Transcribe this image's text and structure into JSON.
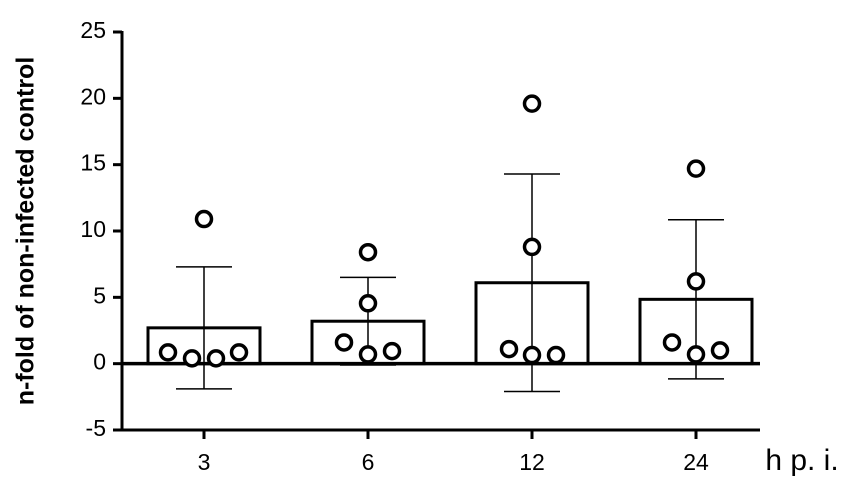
{
  "chart_data": {
    "type": "bar",
    "ylabel": "n-fold of non-infected control",
    "xlabel": "h p. i.",
    "categories": [
      "3",
      "6",
      "12",
      "24"
    ],
    "values": [
      2.7,
      3.2,
      6.1,
      4.85
    ],
    "errors": [
      4.6,
      3.3,
      8.2,
      6.0
    ],
    "points": [
      [
        0.85,
        0.4,
        0.4,
        0.85,
        10.9
      ],
      [
        1.6,
        4.55,
        0.7,
        0.95,
        8.4
      ],
      [
        1.1,
        0.65,
        0.65,
        8.8,
        19.6
      ],
      [
        1.6,
        6.2,
        0.7,
        1.0,
        14.7
      ]
    ],
    "color": "#ffffff",
    "ylim": [
      -5,
      25
    ],
    "yticks": [
      -5,
      0,
      5,
      10,
      15,
      20,
      25
    ]
  }
}
